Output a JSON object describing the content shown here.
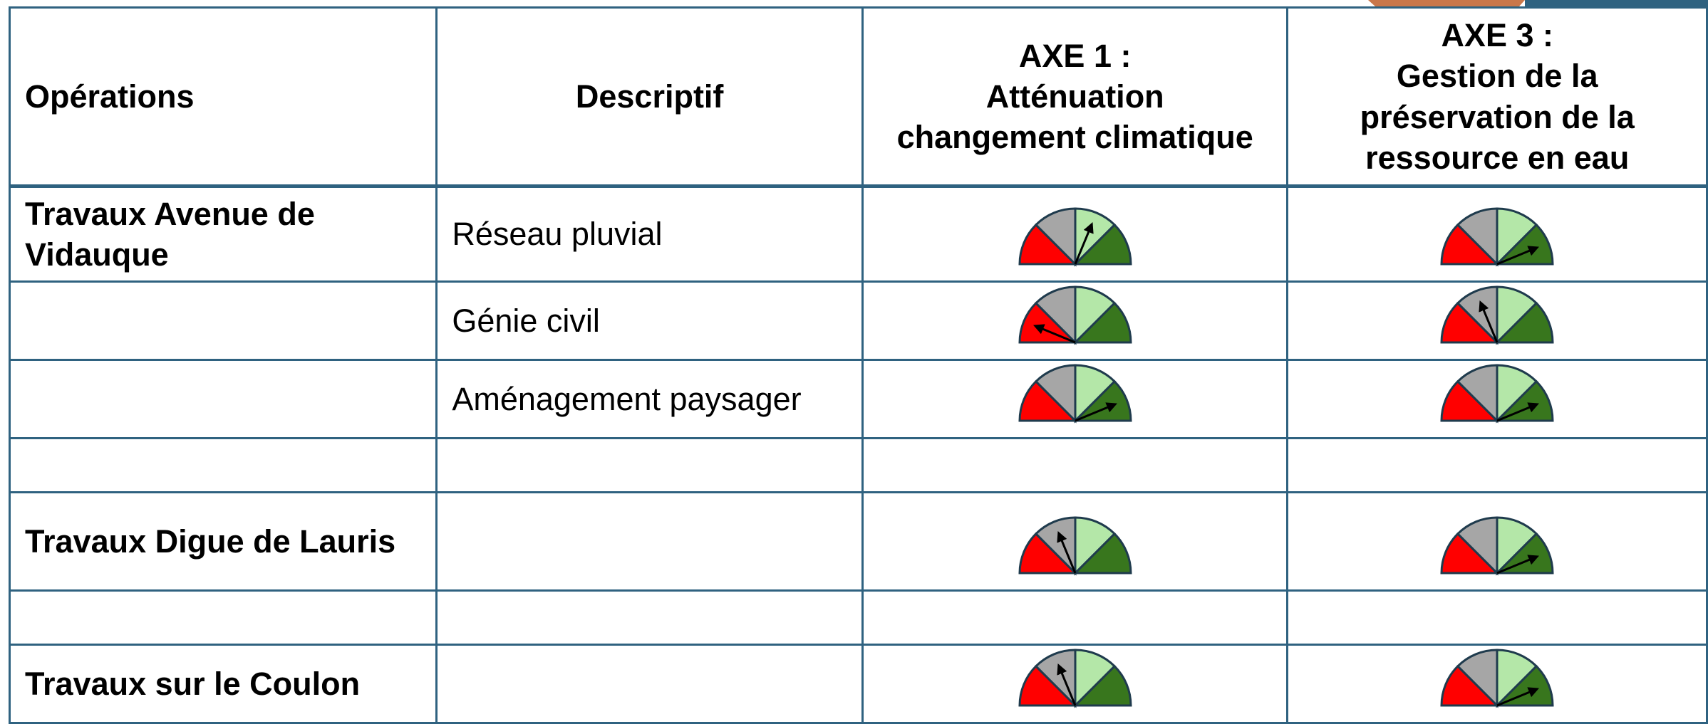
{
  "table": {
    "headers": [
      "Opérations",
      "Descriptif",
      "AXE 1 :\nAtténuation\nchangement climatique",
      "AXE 3 :\nGestion de la\npréservation de la\nressource en eau"
    ],
    "rows": [
      {
        "operation": "Travaux Avenue de Vidauque",
        "description": "Réseau pluvial",
        "axe1": 2,
        "axe3": 3
      },
      {
        "operation": null,
        "description": "Génie civil",
        "axe1": 0,
        "axe3": 1
      },
      {
        "operation": null,
        "description": "Aménagement paysager",
        "axe1": 3,
        "axe3": 3
      },
      {
        "operation": null,
        "description": null,
        "axe1": null,
        "axe3": null
      },
      {
        "operation": "Travaux Digue de Lauris",
        "description": null,
        "axe1": 1,
        "axe3": 3
      },
      {
        "operation": null,
        "description": null,
        "axe1": null,
        "axe3": null
      },
      {
        "operation": "Travaux sur le Coulon",
        "description": null,
        "axe1": 1,
        "axe3": 3
      }
    ]
  }
}
